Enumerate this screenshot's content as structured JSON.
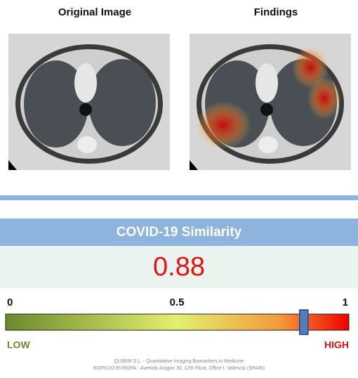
{
  "panels": [
    {
      "title": "Original Image"
    },
    {
      "title": "Findings"
    }
  ],
  "similarity": {
    "title": "COVID-19 Similarity",
    "value": 0.88,
    "scale": {
      "ticks": [
        0,
        0.5,
        1
      ],
      "low_label": "LOW",
      "high_label": "HIGH"
    }
  },
  "footer": [
    "QUIBIM S.L. - Quantitative Imaging Biomarkers in Medicine",
    "EDIFICIO EUROPA - Avenida Aragon 30, 12th Floor, Office I. Valencia (SPAIN)"
  ]
}
